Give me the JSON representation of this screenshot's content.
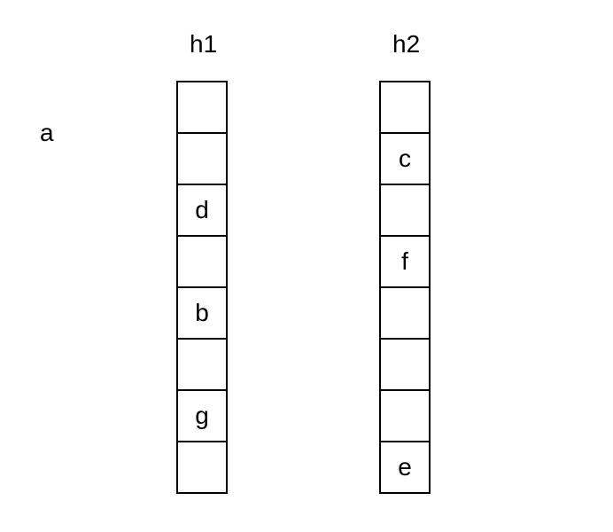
{
  "standalone_label": "a",
  "tables": [
    {
      "title": "h1",
      "slots": [
        "",
        "",
        "d",
        "",
        "b",
        "",
        "g",
        ""
      ]
    },
    {
      "title": "h2",
      "slots": [
        "",
        "c",
        "",
        "f",
        "",
        "",
        "",
        "e"
      ]
    }
  ]
}
